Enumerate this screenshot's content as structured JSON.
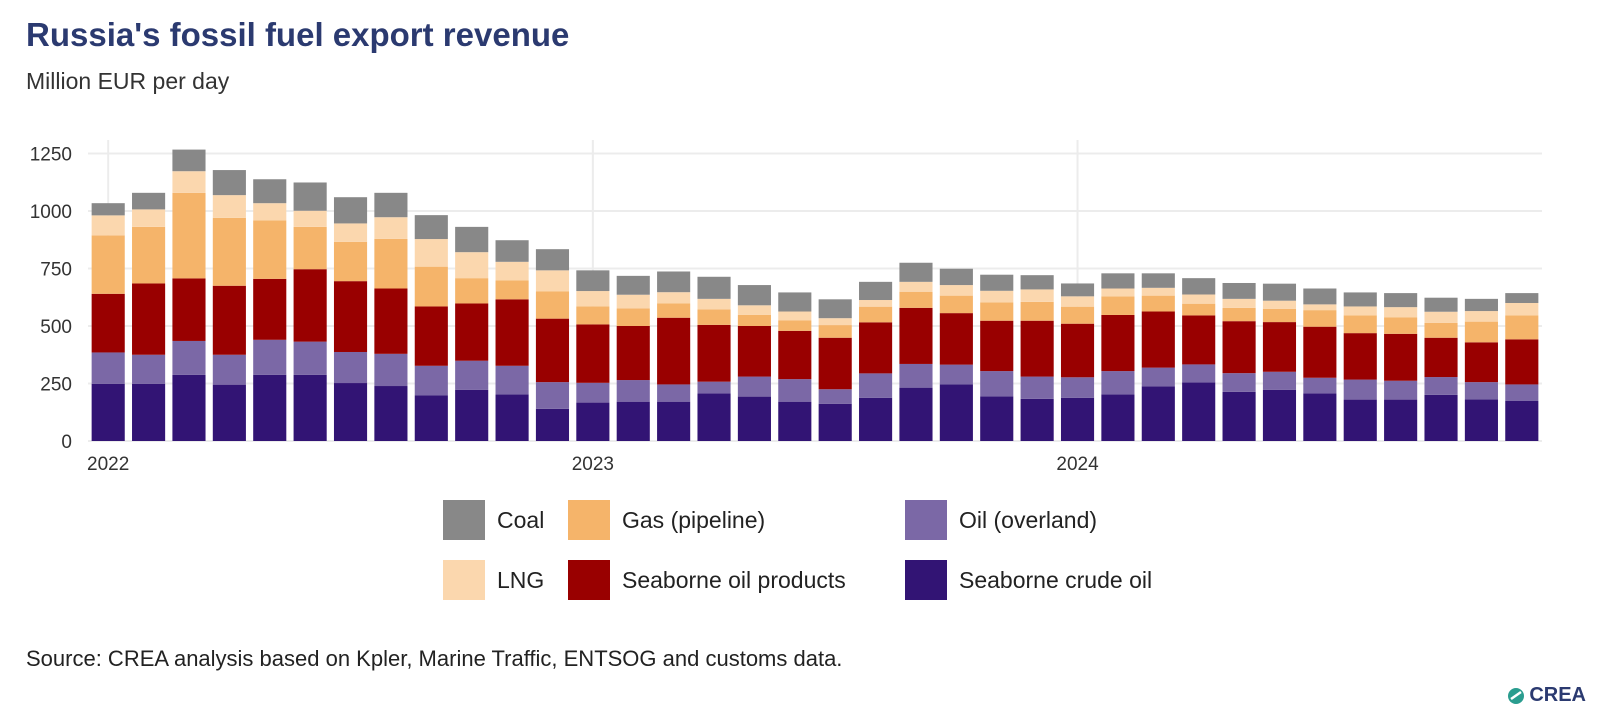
{
  "chart_data": {
    "type": "bar",
    "stacked": true,
    "title": "Russia's fossil fuel export revenue",
    "subtitle": "Million EUR per day",
    "xlabel": "",
    "ylabel": "",
    "ylim": [
      0,
      1300
    ],
    "yticks": [
      0,
      250,
      500,
      750,
      1000,
      1250
    ],
    "xticks": [
      {
        "label": "2022",
        "index": 0
      },
      {
        "label": "2023",
        "index": 12
      },
      {
        "label": "2024",
        "index": 24
      }
    ],
    "grid": true,
    "legend_position": "bottom",
    "categories": [
      "2022-01",
      "2022-02",
      "2022-03",
      "2022-04",
      "2022-05",
      "2022-06",
      "2022-07",
      "2022-08",
      "2022-09",
      "2022-10",
      "2022-11",
      "2022-12",
      "2023-01",
      "2023-02",
      "2023-03",
      "2023-04",
      "2023-05",
      "2023-06",
      "2023-07",
      "2023-08",
      "2023-09",
      "2023-10",
      "2023-11",
      "2023-12",
      "2024-01",
      "2024-02",
      "2024-03",
      "2024-04",
      "2024-05",
      "2024-06",
      "2024-07",
      "2024-08",
      "2024-09",
      "2024-10",
      "2024-11",
      "2024-12"
    ],
    "series": [
      {
        "name": "Seaborne crude oil",
        "color": "#321474",
        "values": [
          249,
          249,
          288,
          245,
          288,
          288,
          252,
          239,
          198,
          222,
          203,
          140,
          167,
          171,
          171,
          207,
          193,
          171,
          162,
          188,
          232,
          246,
          194,
          183,
          188,
          203,
          238,
          255,
          214,
          222,
          207,
          180,
          180,
          201,
          181,
          174
        ]
      },
      {
        "name": "Oil (overland)",
        "color": "#7b68a6",
        "values": [
          136,
          126,
          147,
          130,
          152,
          144,
          135,
          140,
          129,
          127,
          124,
          116,
          86,
          94,
          75,
          51,
          87,
          98,
          63,
          106,
          103,
          86,
          110,
          97,
          89,
          101,
          81,
          78,
          81,
          79,
          68,
          87,
          82,
          77,
          75,
          72
        ]
      },
      {
        "name": "Seaborne oil products",
        "color": "#990000",
        "values": [
          255,
          310,
          272,
          300,
          265,
          315,
          308,
          284,
          258,
          249,
          289,
          276,
          254,
          235,
          290,
          247,
          220,
          210,
          224,
          222,
          244,
          224,
          219,
          243,
          233,
          244,
          244,
          213,
          226,
          216,
          222,
          202,
          204,
          171,
          173,
          196
        ]
      },
      {
        "name": "Gas (pipeline)",
        "color": "#f5b46a",
        "values": [
          254,
          246,
          372,
          295,
          254,
          184,
          171,
          216,
          173,
          110,
          82,
          118,
          78,
          76,
          62,
          67,
          48,
          45,
          55,
          68,
          70,
          76,
          80,
          82,
          74,
          81,
          69,
          51,
          58,
          58,
          72,
          77,
          71,
          65,
          90,
          104
        ]
      },
      {
        "name": "LNG",
        "color": "#fbd7ae",
        "values": [
          87,
          76,
          94,
          99,
          75,
          70,
          80,
          94,
          120,
          113,
          81,
          92,
          67,
          60,
          49,
          46,
          42,
          39,
          30,
          29,
          43,
          46,
          50,
          54,
          45,
          34,
          34,
          40,
          39,
          35,
          25,
          39,
          45,
          48,
          46,
          54
        ]
      },
      {
        "name": "Coal",
        "color": "#888888",
        "values": [
          53,
          72,
          94,
          109,
          104,
          123,
          114,
          106,
          104,
          110,
          94,
          92,
          90,
          82,
          90,
          96,
          88,
          83,
          82,
          79,
          83,
          71,
          70,
          62,
          56,
          66,
          63,
          71,
          69,
          74,
          69,
          61,
          61,
          61,
          53,
          43
        ]
      }
    ],
    "legend_order": [
      "Coal",
      "Gas (pipeline)",
      "Oil (overland)",
      "LNG",
      "Seaborne oil products",
      "Seaborne crude oil"
    ],
    "source": "Source: CREA analysis based on Kpler, Marine Traffic, ENTSOG and customs data.",
    "logo": "CREA"
  }
}
